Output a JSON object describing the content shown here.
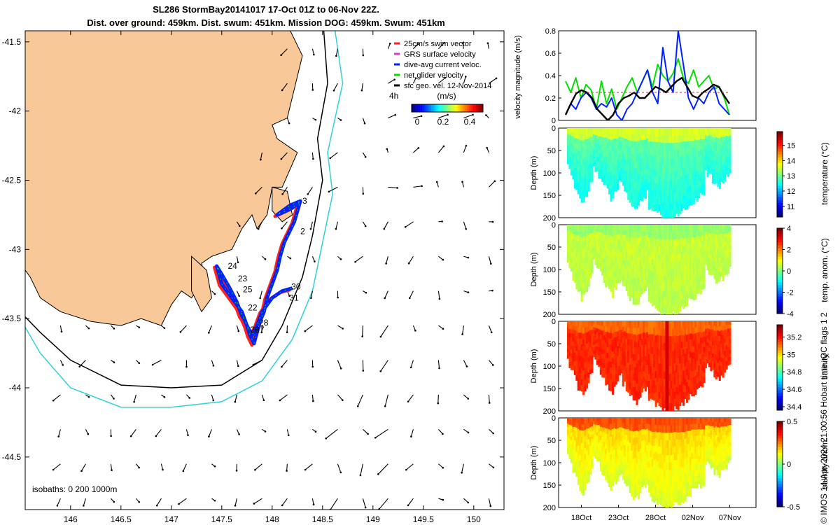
{
  "title": {
    "line1": "SL286 StormBay20141017 17-Oct 01Z to 06-Nov 22Z.",
    "line2": "Dist. over ground: 459km. Dist. swum: 451km. Mission DOG: 459km. Swum: 451km"
  },
  "footer": "© IMOS 14-Apr-2024 21:00:56 Hobart time. QC flags 1  2",
  "colors": {
    "land": "#f8c898",
    "coast": "#000000",
    "isobath_200": "#000000",
    "isobath_1000": "#30d0d8",
    "track_dive_avg": "#0020ff",
    "track_swim": "#ff2020",
    "net_velocity": "#00e000",
    "sfc_geo_vel": "#000000"
  },
  "chart_data": [
    {
      "type": "scatter",
      "name": "glider-track-map",
      "xlim": [
        145.55,
        150.3
      ],
      "ylim": [
        -44.88,
        -41.42
      ],
      "xticks": [
        "146",
        "146.5",
        "147",
        "147.5",
        "148",
        "148.5",
        "149",
        "149.5",
        "150"
      ],
      "yticks": [
        "-41.5",
        "-42",
        "-42.5",
        "-43",
        "-43.5",
        "-44",
        "-44.5"
      ],
      "legend": {
        "items": [
          "25cm/s swim vector",
          "GRS surface velocity",
          "dive-avg current veloc.",
          "net glider velocity",
          "sfc geo. vel. 12-Nov-2014"
        ],
        "vector_time": "4h",
        "colorbar_label": "(m/s)",
        "colorbar_ticks": [
          "0",
          "0.2",
          "0.4"
        ]
      },
      "isobaths_label": "isobaths: 0   200  1000m",
      "track": {
        "lon": [
          148.27,
          148.2,
          148.05,
          148.18,
          148.28,
          148.22,
          148.12,
          148.08,
          148.05,
          148.0,
          147.95,
          147.92,
          147.88,
          147.85,
          147.82,
          147.78,
          147.75,
          147.72,
          147.7,
          147.65,
          147.58,
          147.5,
          147.45,
          147.5,
          147.6,
          147.7,
          147.75,
          147.8,
          147.85,
          147.9,
          148.0,
          148.1,
          148.2
        ],
        "lat": [
          -42.66,
          -42.7,
          -42.75,
          -42.68,
          -42.65,
          -42.8,
          -42.95,
          -43.05,
          -43.15,
          -43.25,
          -43.35,
          -43.45,
          -43.52,
          -43.6,
          -43.68,
          -43.62,
          -43.55,
          -43.5,
          -43.48,
          -43.38,
          -43.28,
          -43.18,
          -43.12,
          -43.25,
          -43.35,
          -43.45,
          -43.55,
          -43.62,
          -43.55,
          -43.45,
          -43.35,
          -43.3,
          -43.28
        ]
      },
      "track_labels": [
        {
          "text": "24",
          "lon": 147.56,
          "lat": -43.14
        },
        {
          "text": "23",
          "lon": 147.66,
          "lat": -43.23
        },
        {
          "text": "25",
          "lon": 147.71,
          "lat": -43.31
        },
        {
          "text": "22",
          "lon": 147.76,
          "lat": -43.44
        },
        {
          "text": "28",
          "lon": 147.87,
          "lat": -43.55
        },
        {
          "text": "27",
          "lon": 147.83,
          "lat": -43.6
        },
        {
          "text": "26",
          "lon": 147.78,
          "lat": -43.6
        },
        {
          "text": "30",
          "lon": 148.19,
          "lat": -43.29
        },
        {
          "text": "31",
          "lon": 148.17,
          "lat": -43.37
        },
        {
          "text": "3",
          "lon": 148.3,
          "lat": -42.67
        },
        {
          "text": "2",
          "lon": 148.28,
          "lat": -42.89
        }
      ]
    },
    {
      "type": "line",
      "name": "velocity-magnitude",
      "ylabel": "velocity magnitude (m/s)",
      "ylim": [
        0,
        0.8
      ],
      "yticks": [
        "0",
        "0.2",
        "0.4",
        "0.6",
        "0.8"
      ],
      "xlim": [
        0,
        22
      ],
      "series": [
        {
          "name": "net glider velocity",
          "color": "#00e000",
          "values": [
            0.35,
            0.25,
            0.38,
            0.2,
            0.32,
            0.27,
            0.1,
            0.35,
            0.15,
            0.28,
            0.1,
            0.2,
            0.3,
            0.38,
            0.25,
            0.35,
            0.45,
            0.3,
            0.5,
            0.4,
            0.35,
            0.42,
            0.55,
            0.38,
            0.33,
            0.45,
            0.3,
            0.35,
            0.4,
            0.28,
            0.3,
            0.2,
            0.05
          ]
        },
        {
          "name": "dive-avg current veloc.",
          "color": "#0020ff",
          "values": [
            0.05,
            0.15,
            0.1,
            0.2,
            0.25,
            0.2,
            0.1,
            0.15,
            0.12,
            0.2,
            0.05,
            0.0,
            0.1,
            0.15,
            0.25,
            0.35,
            0.45,
            0.25,
            0.15,
            0.65,
            0.35,
            0.25,
            0.8,
            0.5,
            0.2,
            0.1,
            0.2,
            0.15,
            0.25,
            0.3,
            0.15,
            0.1,
            0.05
          ]
        },
        {
          "name": "sfc geo. vel.",
          "color": "#000000",
          "values": [
            0.05,
            0.15,
            0.24,
            0.27,
            0.25,
            0.2,
            0.1,
            0.05,
            0.0,
            0.05,
            0.15,
            0.2,
            0.22,
            0.25,
            0.2,
            0.2,
            0.25,
            0.3,
            0.28,
            0.25,
            0.3,
            0.35,
            0.38,
            0.3,
            0.22,
            0.2,
            0.25,
            0.28,
            0.32,
            0.3,
            0.22,
            0.15
          ]
        }
      ]
    },
    {
      "type": "heatmap",
      "name": "temperature-section",
      "ylabel": "Depth (m)",
      "colorbar_label": "temperature (°C)",
      "clim": [
        10.3,
        15.9
      ],
      "colorbar_ticks": [
        "15",
        "14",
        "13",
        "12",
        "11"
      ],
      "ylim": [
        200,
        0
      ],
      "yticks": [
        "0",
        "50",
        "100",
        "150",
        "200"
      ],
      "field": {
        "base": 13.0,
        "surface": 13.6,
        "deep_fade": 0.55
      }
    },
    {
      "type": "heatmap",
      "name": "temperature-anomaly-section",
      "ylabel": "Depth (m)",
      "colorbar_label": "temp. anom. (°C)",
      "clim": [
        -4,
        4
      ],
      "colorbar_ticks": [
        "4",
        "2",
        "0",
        "-2",
        "-4"
      ],
      "ylim": [
        200,
        0
      ],
      "yticks": [
        "0",
        "50",
        "100",
        "150",
        "200"
      ],
      "field": {
        "base": 0.6,
        "surface": 0.2,
        "deep_fade": 0.15
      }
    },
    {
      "type": "heatmap",
      "name": "salinity-section",
      "ylabel": "Depth (m)",
      "colorbar_label": "salinity",
      "clim": [
        34.36,
        35.34
      ],
      "colorbar_ticks": [
        "35.2",
        "35",
        "34.8",
        "34.6",
        "34.4"
      ],
      "ylim": [
        200,
        0
      ],
      "yticks": [
        "0",
        "50",
        "100",
        "150",
        "200"
      ],
      "field": {
        "base": 35.18,
        "surface": 35.12,
        "deep_fade": 0.0
      }
    },
    {
      "type": "heatmap",
      "name": "salinity-anomaly-section",
      "ylabel": "Depth (m)",
      "colorbar_label": "salinity anom.",
      "clim": [
        -0.5,
        0.5
      ],
      "colorbar_ticks": [
        "0.5",
        "0",
        "-0.5"
      ],
      "ylim": [
        200,
        0
      ],
      "yticks": [
        "0",
        "50",
        "100",
        "150",
        "200"
      ],
      "xticks": [
        "18Oct",
        "23Oct",
        "28Oct",
        "02Nov",
        "07Nov"
      ],
      "field": {
        "base": 0.18,
        "surface": 0.3,
        "deep_fade": 0.1
      }
    }
  ]
}
